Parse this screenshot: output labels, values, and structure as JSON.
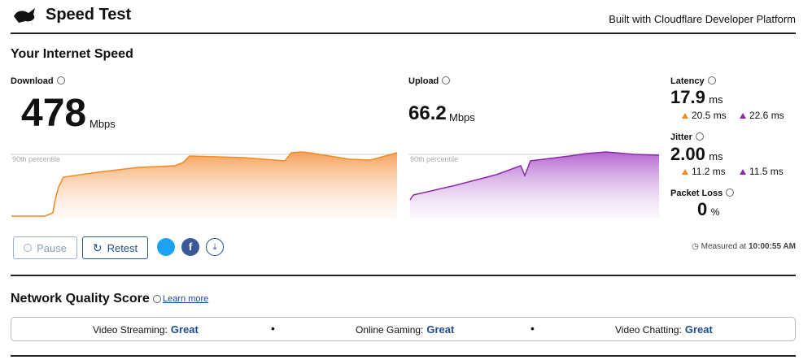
{
  "header": {
    "title": "Speed Test",
    "subtitle": "Built with Cloudflare Developer Platform"
  },
  "section_title": "Your Internet Speed",
  "download": {
    "label": "Download",
    "value": "478",
    "unit": "Mbps",
    "percentile_label": "90th percentile"
  },
  "upload": {
    "label": "Upload",
    "value": "66.2",
    "unit": "Mbps",
    "percentile_label": "90th percentile"
  },
  "latency": {
    "label": "Latency",
    "value": "17.9",
    "unit": "ms",
    "down": "20.5 ms",
    "up": "22.6 ms"
  },
  "jitter": {
    "label": "Jitter",
    "value": "2.00",
    "unit": "ms",
    "down": "11.2 ms",
    "up": "11.5 ms"
  },
  "packet_loss": {
    "label": "Packet Loss",
    "value": "0",
    "unit": "%"
  },
  "buttons": {
    "pause": "Pause",
    "retest": "Retest"
  },
  "measured": {
    "label": "Measured at",
    "time": "10:00:55 AM"
  },
  "quality": {
    "title": "Network Quality Score",
    "link": "Learn more",
    "items": [
      {
        "label": "Video Streaming:",
        "rating": "Great"
      },
      {
        "label": "Online Gaming:",
        "rating": "Great"
      },
      {
        "label": "Video Chatting:",
        "rating": "Great"
      }
    ]
  }
}
